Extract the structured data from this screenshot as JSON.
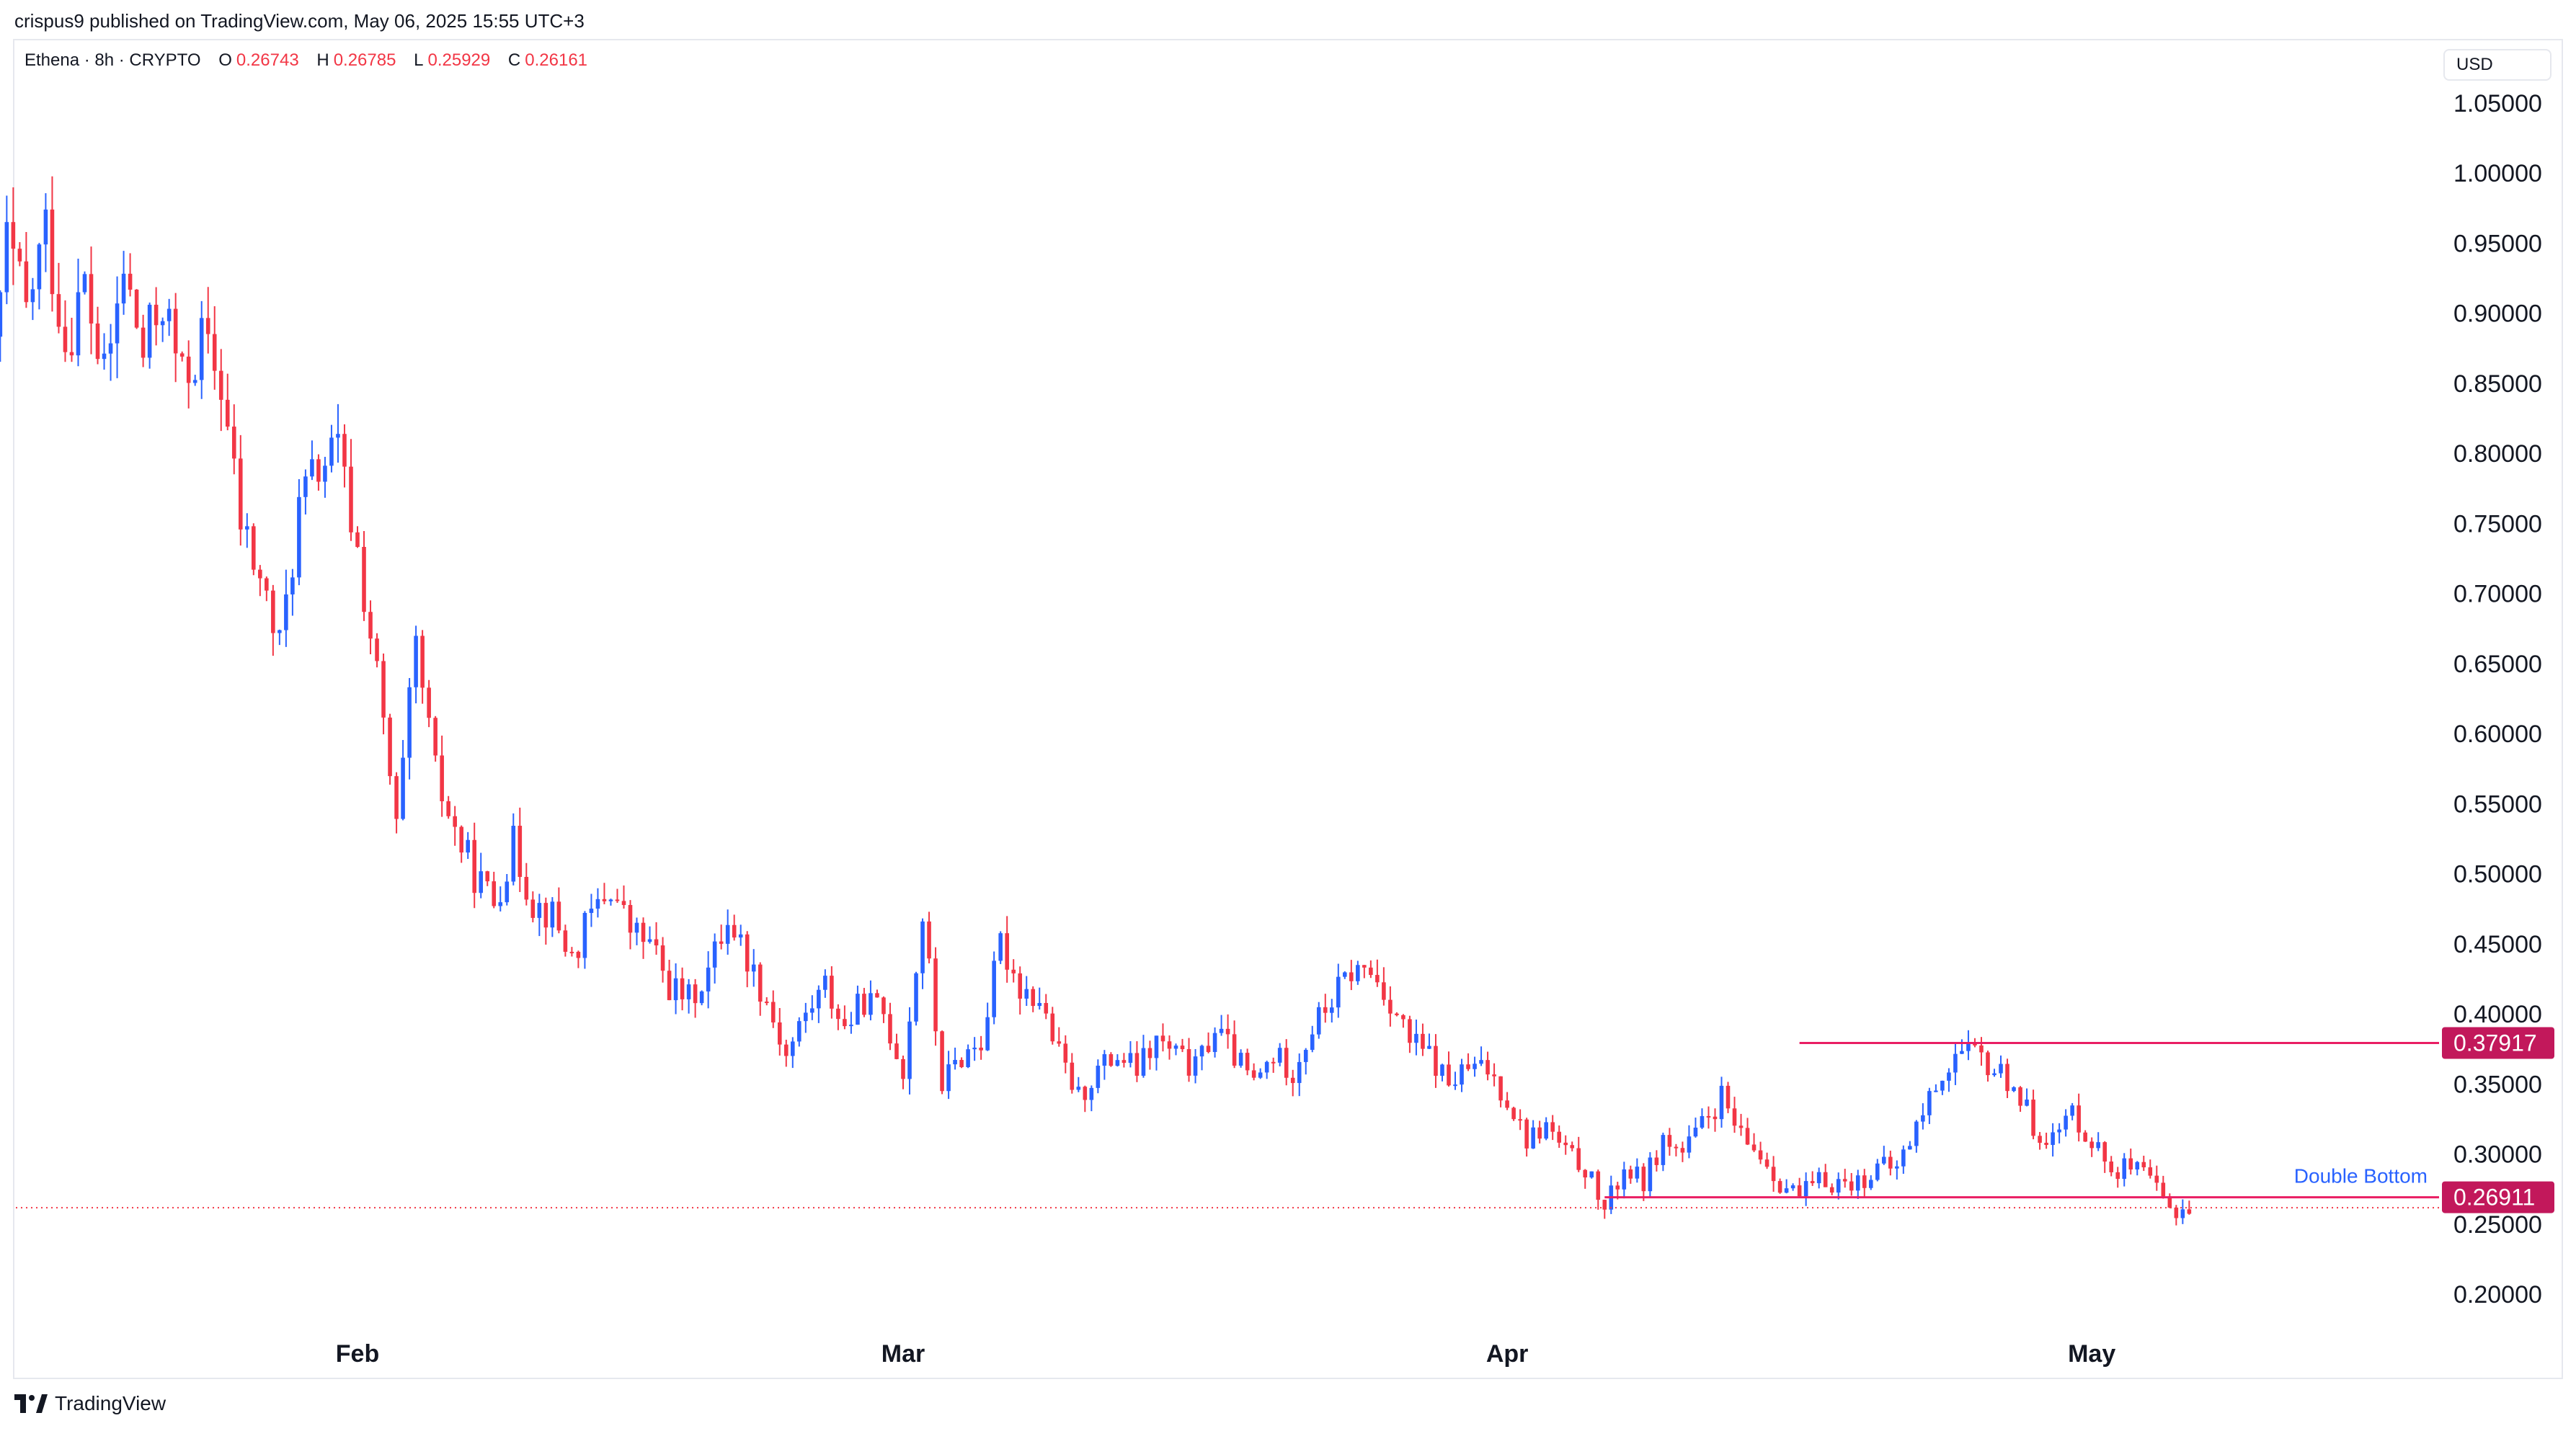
{
  "header": {
    "published_by": "crispus9 published on TradingView.com, May 06, 2025 15:55 UTC+3"
  },
  "legend": {
    "symbol": "Ethena · 8h · CRYPTO",
    "open_label": "O",
    "open": "0.26743",
    "high_label": "H",
    "high": "0.26785",
    "low_label": "L",
    "low": "0.25929",
    "close_label": "C",
    "close": "0.26161"
  },
  "currency": "USD",
  "brand": "TradingView",
  "colors": {
    "up": "#2962ff",
    "down": "#f23645",
    "level": "#e91e63",
    "badge": "#c2185b",
    "annotation": "#2962ff",
    "price_line": "#f23645"
  },
  "chart_data": {
    "type": "candlestick",
    "ylim": [
      0.15,
      1.07
    ],
    "yticks": [
      "0.20000",
      "0.25000",
      "0.30000",
      "0.35000",
      "0.40000",
      "0.45000",
      "0.50000",
      "0.55000",
      "0.60000",
      "0.65000",
      "0.70000",
      "0.75000",
      "0.80000",
      "0.85000",
      "0.90000",
      "0.95000",
      "1.00000",
      "1.05000"
    ],
    "x_labels": [
      {
        "label": "Feb",
        "date": "2025-02-01"
      },
      {
        "label": "Mar",
        "date": "2025-03-01"
      },
      {
        "label": "Apr",
        "date": "2025-04-01"
      },
      {
        "label": "May",
        "date": "2025-05-01"
      }
    ],
    "date_range": [
      "2025-01-13",
      "2025-05-06"
    ],
    "close_path": [
      [
        "2025-01-13",
        0.83
      ],
      [
        "2025-01-14",
        0.95
      ],
      [
        "2025-01-15",
        0.9
      ],
      [
        "2025-01-16",
        0.96
      ],
      [
        "2025-01-17",
        0.88
      ],
      [
        "2025-01-18",
        0.92
      ],
      [
        "2025-01-19",
        0.85
      ],
      [
        "2025-01-20",
        0.93
      ],
      [
        "2025-01-21",
        0.87
      ],
      [
        "2025-01-22",
        0.91
      ],
      [
        "2025-01-23",
        0.85
      ],
      [
        "2025-01-24",
        0.88
      ],
      [
        "2025-01-25",
        0.85
      ],
      [
        "2025-01-26",
        0.75
      ],
      [
        "2025-01-27",
        0.71
      ],
      [
        "2025-01-28",
        0.66
      ],
      [
        "2025-01-29",
        0.76
      ],
      [
        "2025-01-30",
        0.79
      ],
      [
        "2025-01-31",
        0.8
      ],
      [
        "2025-02-01",
        0.73
      ],
      [
        "2025-02-02",
        0.64
      ],
      [
        "2025-02-03",
        0.53
      ],
      [
        "2025-02-04",
        0.66
      ],
      [
        "2025-02-05",
        0.57
      ],
      [
        "2025-02-06",
        0.53
      ],
      [
        "2025-02-07",
        0.5
      ],
      [
        "2025-02-08",
        0.48
      ],
      [
        "2025-02-09",
        0.52
      ],
      [
        "2025-02-10",
        0.48
      ],
      [
        "2025-02-11",
        0.47
      ],
      [
        "2025-02-12",
        0.44
      ],
      [
        "2025-02-13",
        0.47
      ],
      [
        "2025-02-14",
        0.49
      ],
      [
        "2025-02-15",
        0.46
      ],
      [
        "2025-02-16",
        0.45
      ],
      [
        "2025-02-17",
        0.42
      ],
      [
        "2025-02-18",
        0.41
      ],
      [
        "2025-02-19",
        0.43
      ],
      [
        "2025-02-20",
        0.47
      ],
      [
        "2025-02-21",
        0.44
      ],
      [
        "2025-02-22",
        0.41
      ],
      [
        "2025-02-23",
        0.37
      ],
      [
        "2025-02-24",
        0.4
      ],
      [
        "2025-02-25",
        0.42
      ],
      [
        "2025-02-26",
        0.39
      ],
      [
        "2025-02-27",
        0.41
      ],
      [
        "2025-02-28",
        0.4
      ],
      [
        "2025-03-01",
        0.36
      ],
      [
        "2025-03-02",
        0.47
      ],
      [
        "2025-03-03",
        0.35
      ],
      [
        "2025-03-04",
        0.37
      ],
      [
        "2025-03-05",
        0.38
      ],
      [
        "2025-03-06",
        0.45
      ],
      [
        "2025-03-07",
        0.42
      ],
      [
        "2025-03-08",
        0.41
      ],
      [
        "2025-03-09",
        0.37
      ],
      [
        "2025-03-10",
        0.34
      ],
      [
        "2025-03-11",
        0.36
      ],
      [
        "2025-03-12",
        0.37
      ],
      [
        "2025-03-13",
        0.36
      ],
      [
        "2025-03-14",
        0.38
      ],
      [
        "2025-03-15",
        0.37
      ],
      [
        "2025-03-16",
        0.36
      ],
      [
        "2025-03-17",
        0.39
      ],
      [
        "2025-03-18",
        0.37
      ],
      [
        "2025-03-19",
        0.35
      ],
      [
        "2025-03-20",
        0.37
      ],
      [
        "2025-03-21",
        0.36
      ],
      [
        "2025-03-22",
        0.39
      ],
      [
        "2025-03-23",
        0.41
      ],
      [
        "2025-03-24",
        0.43
      ],
      [
        "2025-03-25",
        0.43
      ],
      [
        "2025-03-26",
        0.41
      ],
      [
        "2025-03-27",
        0.38
      ],
      [
        "2025-03-28",
        0.37
      ],
      [
        "2025-03-29",
        0.35
      ],
      [
        "2025-03-30",
        0.36
      ],
      [
        "2025-03-31",
        0.36
      ],
      [
        "2025-04-01",
        0.34
      ],
      [
        "2025-04-02",
        0.31
      ],
      [
        "2025-04-03",
        0.32
      ],
      [
        "2025-04-04",
        0.3
      ],
      [
        "2025-04-05",
        0.29
      ],
      [
        "2025-04-06",
        0.26
      ],
      [
        "2025-04-07",
        0.29
      ],
      [
        "2025-04-08",
        0.28
      ],
      [
        "2025-04-09",
        0.31
      ],
      [
        "2025-04-10",
        0.3
      ],
      [
        "2025-04-11",
        0.32
      ],
      [
        "2025-04-12",
        0.34
      ],
      [
        "2025-04-13",
        0.31
      ],
      [
        "2025-04-14",
        0.3
      ],
      [
        "2025-04-15",
        0.28
      ],
      [
        "2025-04-16",
        0.27
      ],
      [
        "2025-04-17",
        0.28
      ],
      [
        "2025-04-18",
        0.28
      ],
      [
        "2025-04-19",
        0.28
      ],
      [
        "2025-04-20",
        0.29
      ],
      [
        "2025-04-21",
        0.29
      ],
      [
        "2025-04-22",
        0.32
      ],
      [
        "2025-04-23",
        0.35
      ],
      [
        "2025-04-24",
        0.37
      ],
      [
        "2025-04-25",
        0.37
      ],
      [
        "2025-04-26",
        0.36
      ],
      [
        "2025-04-27",
        0.35
      ],
      [
        "2025-04-28",
        0.32
      ],
      [
        "2025-04-29",
        0.31
      ],
      [
        "2025-04-30",
        0.33
      ],
      [
        "2025-05-01",
        0.31
      ],
      [
        "2025-05-02",
        0.29
      ],
      [
        "2025-05-03",
        0.29
      ],
      [
        "2025-05-04",
        0.28
      ],
      [
        "2025-05-05",
        0.26
      ],
      [
        "2025-05-06",
        0.262
      ]
    ],
    "levels": [
      {
        "value": 0.37917,
        "label": "0.37917",
        "from": "2025-04-16"
      },
      {
        "value": 0.26911,
        "label": "0.26911",
        "from": "2025-04-06"
      }
    ],
    "last_price": 0.26161,
    "annotations": [
      {
        "text": "Double Bottom",
        "value": 0.2795
      }
    ]
  }
}
